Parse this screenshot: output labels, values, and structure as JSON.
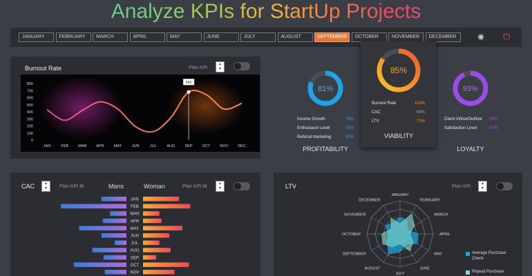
{
  "title": "Analyze KPIs for StartUp Projects",
  "months": [
    "JANUARY",
    "FEBRUARY",
    "MARCH",
    "APRIL",
    "MAY",
    "JUNE",
    "JULY",
    "AUGUST",
    "SEPTEMBER",
    "OCTOBER",
    "NOVEMBER",
    "DECEMBER"
  ],
  "active_month": "SEPTEMBER",
  "icons": {
    "settings": "gear-icon",
    "power": "power-icon"
  },
  "burnout": {
    "title": "Burnout Rate",
    "plan_label": "Plan KPI",
    "chart_data": {
      "type": "line",
      "categories": [
        "JAN",
        "FEB",
        "MAR",
        "APR",
        "MAY",
        "JUN",
        "JUL",
        "AUG",
        "SEP",
        "OCT",
        "NOV",
        "DEC"
      ],
      "values": [
        430,
        280,
        420,
        540,
        440,
        190,
        120,
        320,
        680,
        640,
        440,
        520
      ],
      "highlight": {
        "category": "SEP",
        "label": "680"
      },
      "yticks": [
        "0",
        "100",
        "200",
        "300",
        "400",
        "500",
        "600",
        "700",
        "800"
      ],
      "ylim": [
        0,
        800
      ]
    }
  },
  "gauges": {
    "profitability": {
      "value": "81%",
      "fraction": 0.81,
      "name": "PROFITABILITY",
      "color": "#1fa3e8",
      "rows": [
        {
          "label": "Income Growth",
          "value": "76%"
        },
        {
          "label": "Enthusiasm Level",
          "value": "75%"
        },
        {
          "label": "Referral Marketing",
          "value": "93%"
        }
      ]
    },
    "viability": {
      "value": "85%",
      "fraction": 0.85,
      "name": "VIABILITY",
      "color": "#f39a1e",
      "rows": [
        {
          "label": "Burnout Rate",
          "value": "113%"
        },
        {
          "label": "CAC",
          "value": "69%"
        },
        {
          "label": "LTV",
          "value": "71%"
        }
      ]
    },
    "loyalty": {
      "value": "93%",
      "fraction": 0.93,
      "name": "LOYALTY",
      "color": "#9a4de6",
      "rows": [
        {
          "label": "Client Inflow/Outflow",
          "value": "94%"
        },
        {
          "label": "Satisfaction Level",
          "value": "91%"
        }
      ]
    }
  },
  "cac": {
    "title": "CAC",
    "plan_m": "Plan KPI M",
    "mans": "Mans",
    "woman": "Woman",
    "plan_w": "Plan KPI W",
    "chart_data": {
      "type": "bar",
      "categories": [
        "JAN",
        "FEB",
        "MAR",
        "APR",
        "MAY",
        "JUN",
        "JUL",
        "AUG",
        "SEP",
        "OCT",
        "NOV"
      ],
      "series": [
        {
          "name": "Mans",
          "values": [
            38,
            100,
            25,
            36,
            72,
            38,
            18,
            52,
            35,
            80,
            33
          ]
        },
        {
          "name": "Woman",
          "values": [
            55,
            72,
            25,
            28,
            60,
            40,
            25,
            42,
            20,
            70,
            48
          ]
        }
      ]
    }
  },
  "ltv": {
    "title": "LTV",
    "plan_label": "Plan KPI",
    "chart_data": {
      "type": "radar",
      "categories": [
        "JANUARY",
        "FEBRUARY",
        "MARCH",
        "APRIL",
        "MAY",
        "JUNE",
        "JULY",
        "AUGUST",
        "SEPTEMBER",
        "OCTOBER",
        "NOVEMBER",
        "DECEMBER"
      ],
      "series": [
        {
          "name": "Average Purchase Check",
          "color": "#1ea0d8",
          "values": [
            0.5,
            0.45,
            0.25,
            0.55,
            0.6,
            0.35,
            0.55,
            0.7,
            0.45,
            0.35,
            0.5,
            0.4
          ]
        },
        {
          "name": "Repeat Purchase",
          "color": "#7fdcc8",
          "values": [
            0.3,
            0.7,
            0.5,
            0.3,
            0.45,
            0.6,
            0.3,
            0.45,
            0.6,
            0.55,
            0.3,
            0.55
          ]
        }
      ]
    }
  }
}
